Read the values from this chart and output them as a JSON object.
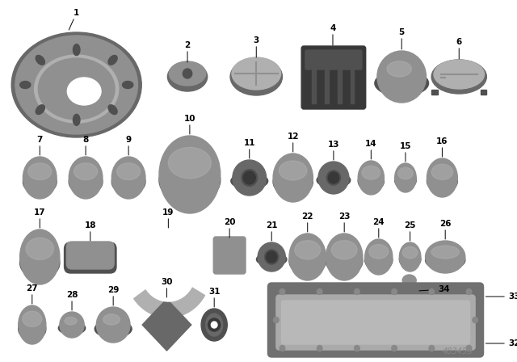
{
  "bg_color": "#ffffff",
  "diagram_id": "483455",
  "c_light": "#b0b0b0",
  "c_mid": "#909090",
  "c_dark": "#686868",
  "c_vdark": "#505050",
  "c_black": "#383838"
}
